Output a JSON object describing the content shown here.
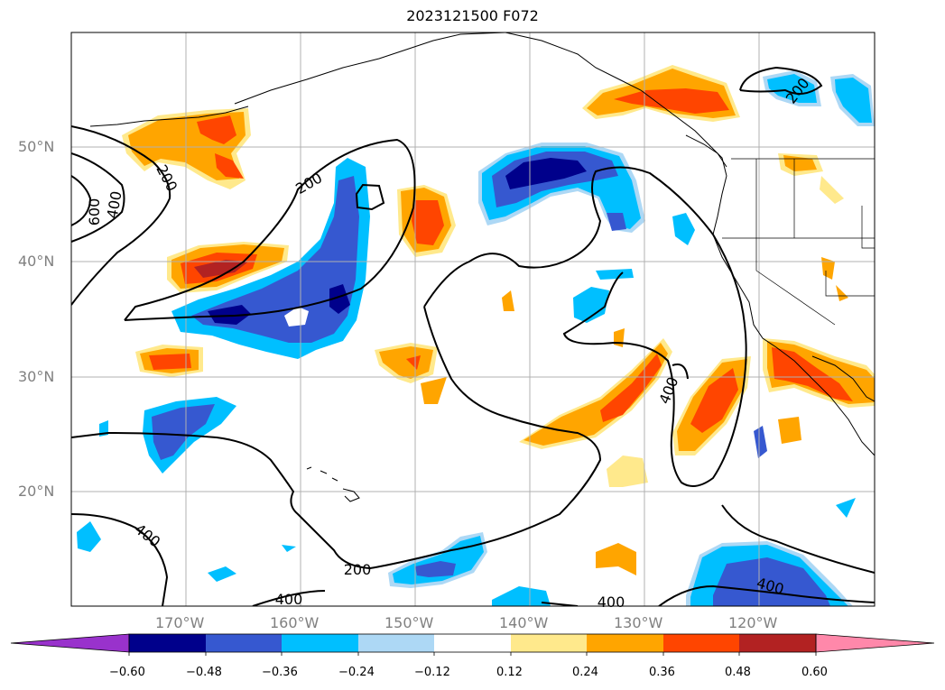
{
  "title": "2023121500 F072",
  "lat_labels": [
    "50°N",
    "40°N",
    "30°N",
    "20°N"
  ],
  "lon_labels": [
    "170°W",
    "160°W",
    "150°W",
    "140°W",
    "130°W",
    "120°W"
  ],
  "contour_labels": [
    "600",
    "400",
    "200",
    "200",
    "200",
    "400",
    "400",
    "200",
    "400",
    "400",
    "400"
  ],
  "colorbar": {
    "ticks": [
      "−0.60",
      "−0.48",
      "−0.36",
      "−0.24",
      "−0.12",
      "0.12",
      "0.24",
      "0.36",
      "0.48",
      "0.60"
    ],
    "colors": [
      "#9932cc",
      "#00008b",
      "#3658d0",
      "#00bfff",
      "#add8f5",
      "#ffffff",
      "#ffe98c",
      "#ffa500",
      "#ff4500",
      "#b22222",
      "#ff88aa"
    ]
  }
}
